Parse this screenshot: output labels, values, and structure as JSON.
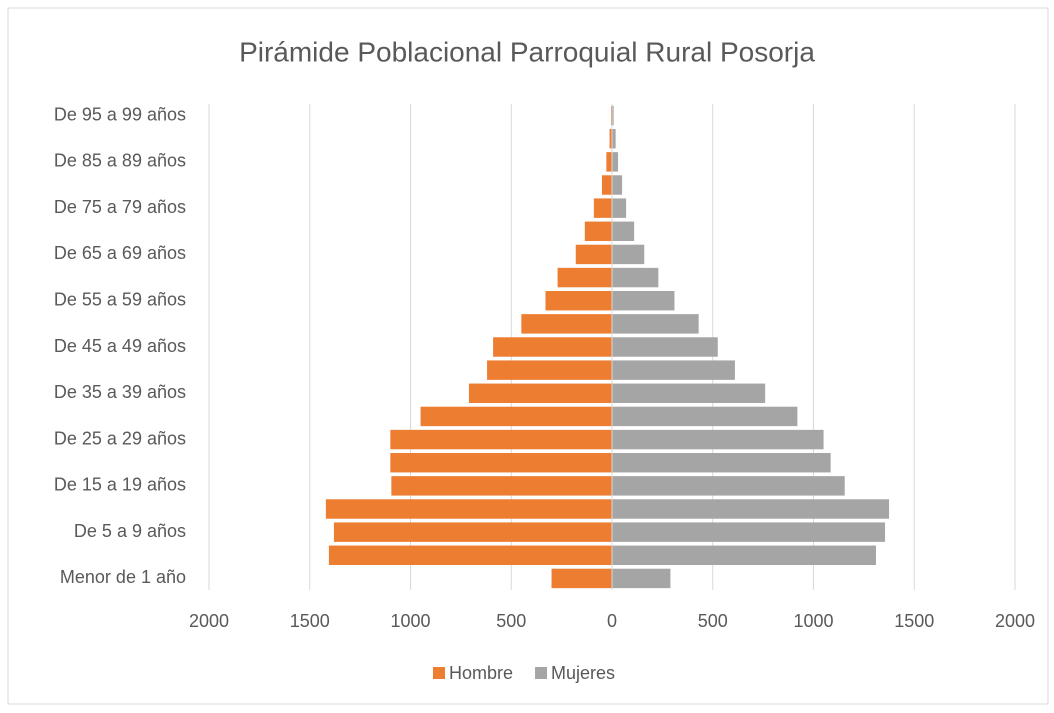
{
  "chart_data": {
    "type": "pyramid",
    "title": "Pirámide Poblacional Parroquial Rural Posorja",
    "categories": [
      "Menor de 1 año",
      null,
      "De 5 a 9 años",
      null,
      "De 15 a 19 años",
      null,
      "De 25 a 29 años",
      null,
      "De 35 a 39 años",
      null,
      "De 45 a 49 años",
      null,
      "De 55 a 59 años",
      null,
      "De 65 a 69 años",
      null,
      "De 75 a 79 años",
      null,
      "De 85 a 89 años",
      null,
      "De 95 a 99 años"
    ],
    "series": [
      {
        "name": "Hombre",
        "color": "#ed7d31",
        "values": [
          -300,
          -1405,
          -1380,
          -1420,
          -1095,
          -1100,
          -1100,
          -950,
          -710,
          -620,
          -590,
          -450,
          -330,
          -270,
          -180,
          -135,
          -90,
          -50,
          -28,
          -12,
          -5
        ]
      },
      {
        "name": "Mujeres",
        "color": "#a5a5a5",
        "values": [
          290,
          1310,
          1355,
          1375,
          1155,
          1085,
          1050,
          920,
          760,
          610,
          525,
          430,
          310,
          230,
          160,
          110,
          70,
          50,
          30,
          18,
          8
        ]
      }
    ],
    "xlim": [
      -2000,
      2000
    ],
    "xticks": [
      {
        "value": -2000,
        "label": "2000"
      },
      {
        "value": -1500,
        "label": "1500"
      },
      {
        "value": -1000,
        "label": "1000"
      },
      {
        "value": -500,
        "label": "500"
      },
      0,
      500,
      1000,
      1500,
      2000
    ],
    "grid": true,
    "legend": "bottom"
  }
}
